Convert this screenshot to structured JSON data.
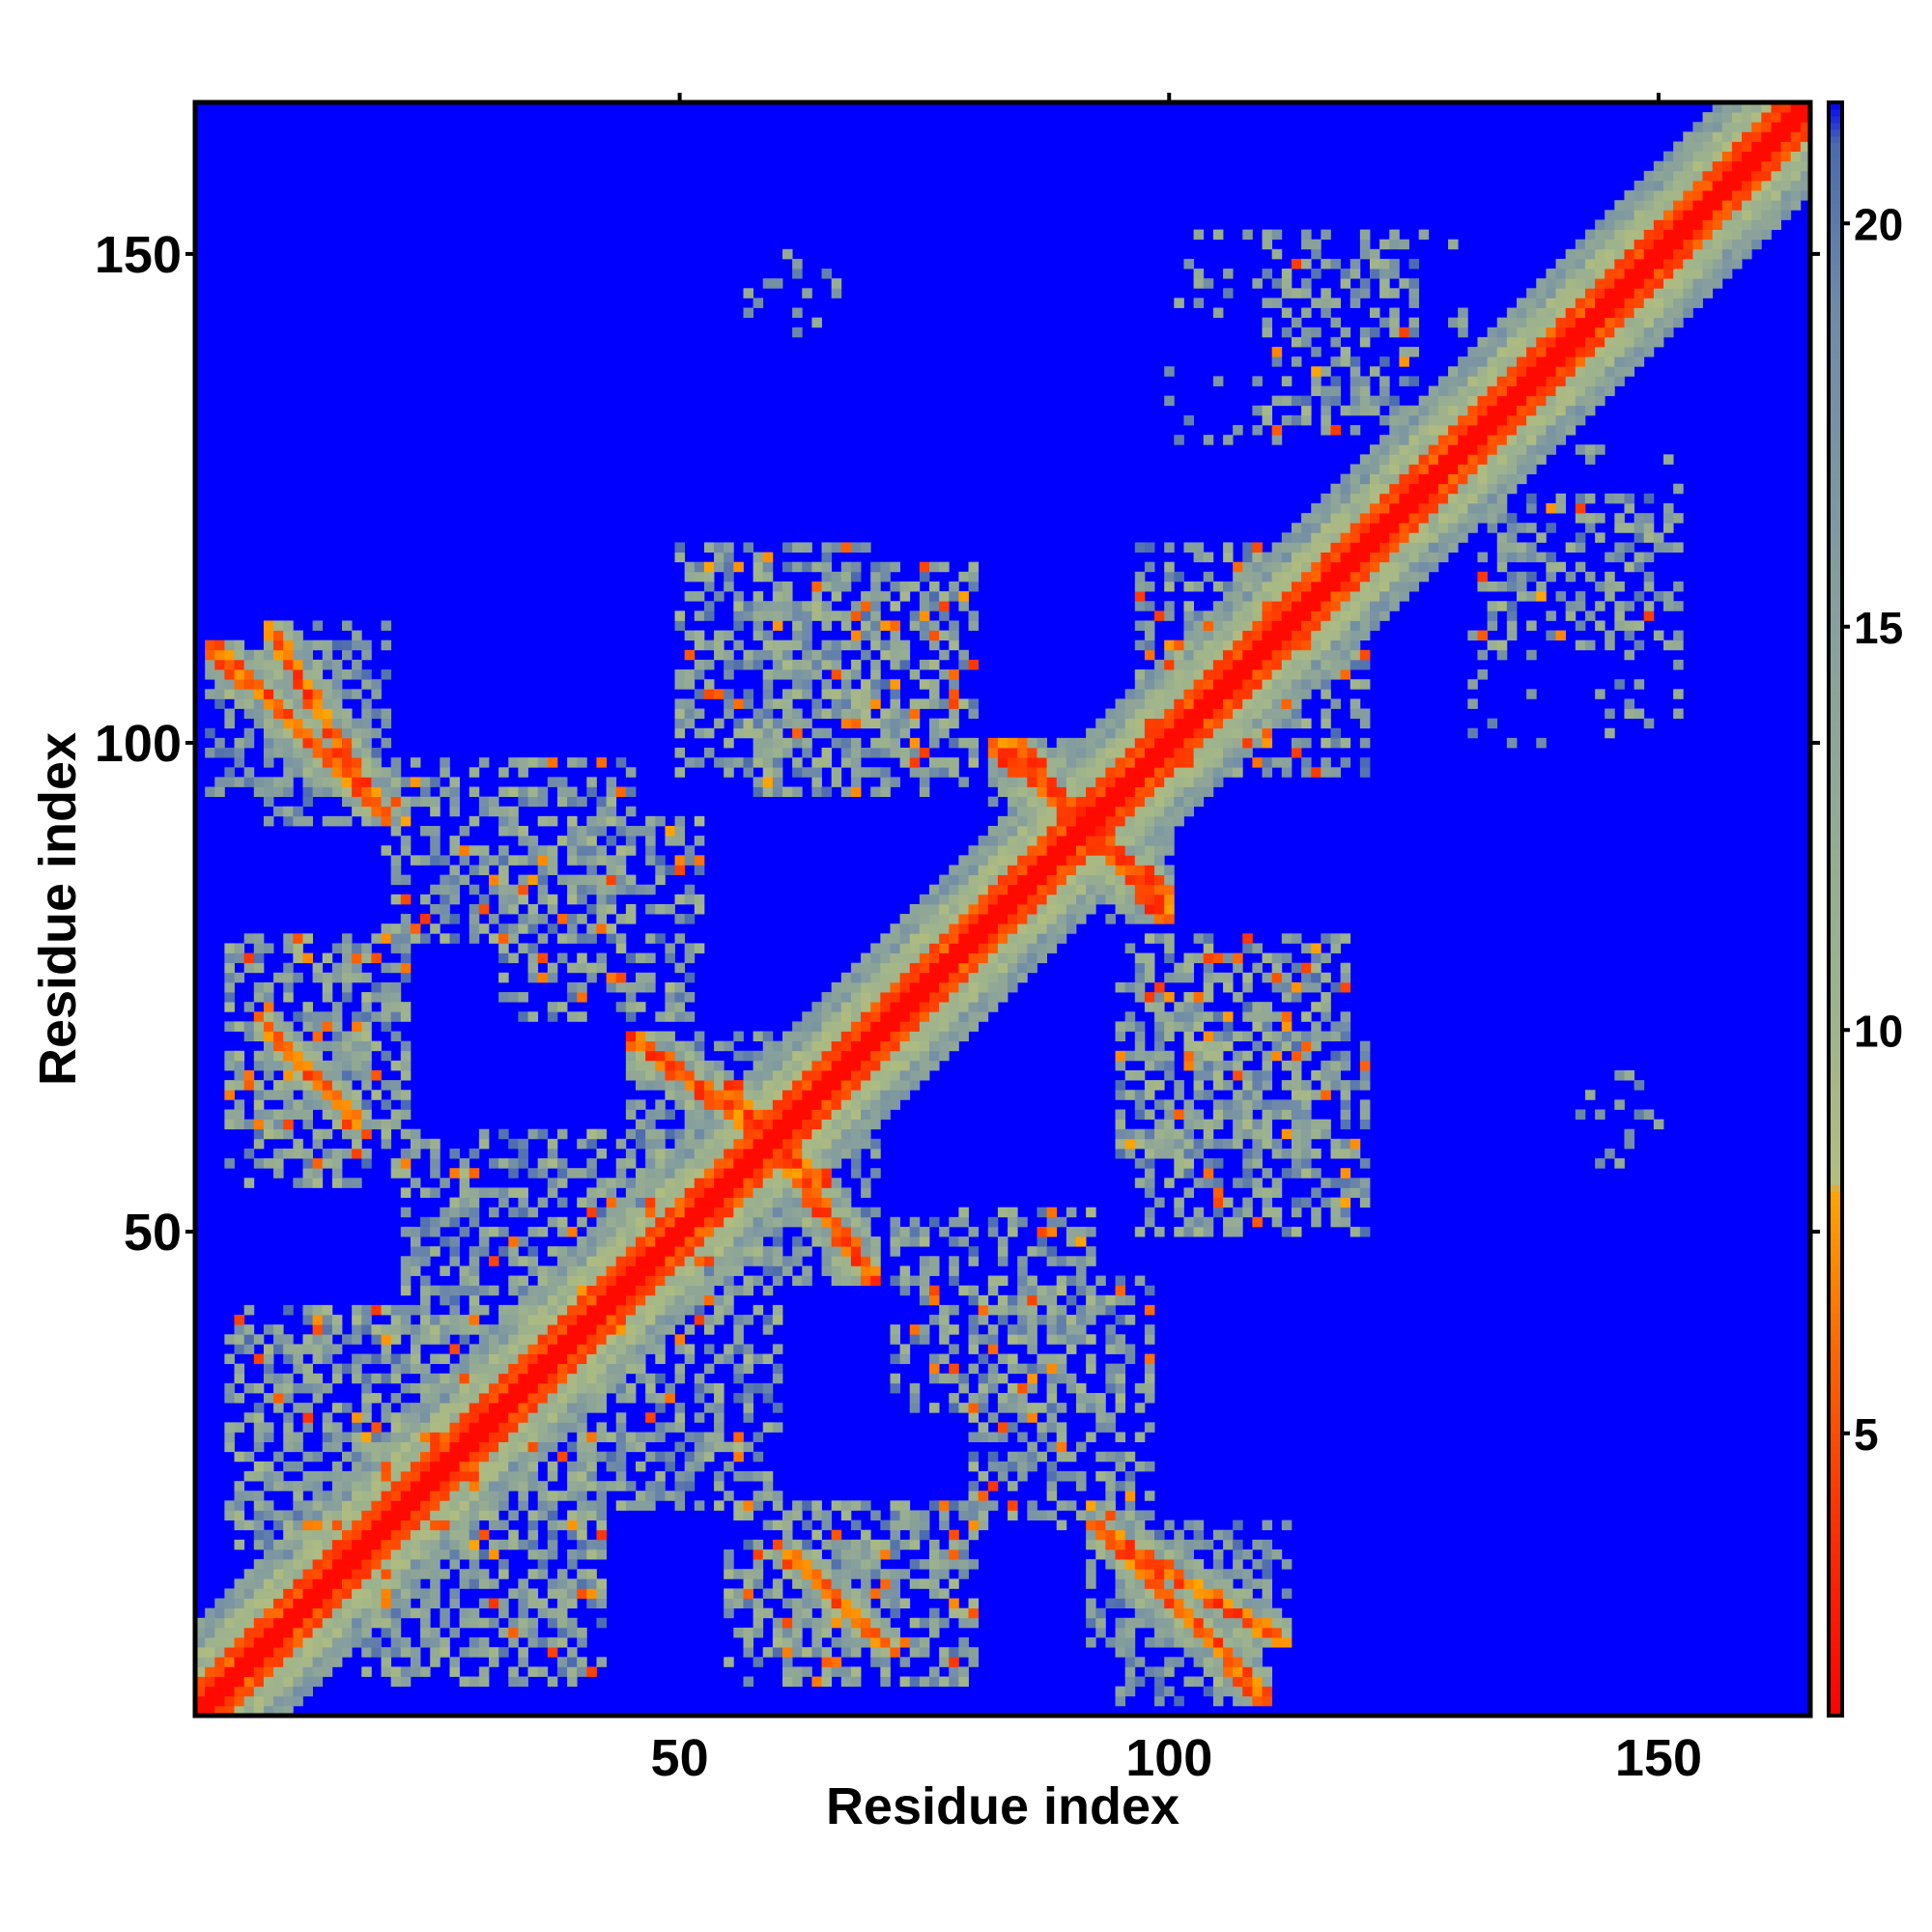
{
  "chart_data": {
    "type": "heatmap",
    "title": "",
    "xlabel": "Residue index",
    "ylabel": "Residue index",
    "n_residues": 165,
    "xlim": [
      1,
      165
    ],
    "ylim": [
      1,
      165
    ],
    "xticks": [
      50,
      100,
      150
    ],
    "yticks": [
      50,
      100,
      150
    ],
    "colorbar": {
      "ticks": [
        5,
        10,
        15,
        20
      ],
      "range": [
        1.5,
        21.5
      ],
      "stops": [
        {
          "value": 1.5,
          "color": "#ff0000"
        },
        {
          "value": 4.0,
          "color": "#ff3300"
        },
        {
          "value": 6.0,
          "color": "#ff6600"
        },
        {
          "value": 8.0,
          "color": "#ffa500"
        },
        {
          "value": 8.1,
          "color": "#b4be7d"
        },
        {
          "value": 10.0,
          "color": "#9fb48c"
        },
        {
          "value": 15.0,
          "color": "#88a09c"
        },
        {
          "value": 19.0,
          "color": "#6e8aa8"
        },
        {
          "value": 21.0,
          "color": "#4b6ab0"
        },
        {
          "value": 21.5,
          "color": "#0000ff"
        }
      ]
    },
    "value_meaning": "pairwise residue distance; values above 21 drawn as background",
    "contact_regions": [
      {
        "i": [
          1,
          165
        ],
        "j": [
          1,
          165
        ],
        "pattern": "diagonal",
        "strength": 1.0
      },
      {
        "i": [
          18,
          42
        ],
        "j": [
          4,
          30
        ],
        "pattern": "helix-bundle",
        "strength": 0.8
      },
      {
        "i": [
          60,
          72
        ],
        "j": [
          7,
          18
        ],
        "pattern": "antiparallel",
        "strength": 0.9
      },
      {
        "i": [
          92,
          112
        ],
        "j": [
          8,
          20
        ],
        "pattern": "antiparallel",
        "strength": 0.9
      },
      {
        "i": [
          40,
          60
        ],
        "j": [
          22,
          48
        ],
        "pattern": "patch",
        "strength": 0.7
      },
      {
        "i": [
          55,
          70
        ],
        "j": [
          45,
          65
        ],
        "pattern": "antiparallel",
        "strength": 0.9
      },
      {
        "i": [
          72,
          92
        ],
        "j": [
          32,
          52
        ],
        "pattern": "patch",
        "strength": 0.6
      },
      {
        "i": [
          84,
          100
        ],
        "j": [
          82,
          100
        ],
        "pattern": "antiparallel",
        "strength": 0.9
      },
      {
        "i": [
          95,
          118
        ],
        "j": [
          58,
          80
        ],
        "pattern": "patch",
        "strength": 0.7
      },
      {
        "i": [
          138,
          150
        ],
        "j": [
          60,
          66
        ],
        "pattern": "sparse",
        "strength": 0.3
      },
      {
        "i": [
          4,
          22
        ],
        "j": [
          55,
          80
        ],
        "pattern": "patch",
        "strength": 0.7
      },
      {
        "i": [
          2,
          18
        ],
        "j": [
          95,
          110
        ],
        "pattern": "antiparallel",
        "strength": 0.9
      },
      {
        "i": [
          20,
          45
        ],
        "j": [
          80,
          98
        ],
        "pattern": "patch",
        "strength": 0.6
      },
      {
        "i": [
          50,
          70
        ],
        "j": [
          97,
          120
        ],
        "pattern": "patch",
        "strength": 0.6
      },
      {
        "i": [
          97,
          110
        ],
        "j": [
          100,
          120
        ],
        "pattern": "patch",
        "strength": 0.6
      },
      {
        "i": [
          132,
          152
        ],
        "j": [
          110,
          125
        ],
        "pattern": "patch",
        "strength": 0.5
      },
      {
        "i": [
          100,
          130
        ],
        "j": [
          130,
          152
        ],
        "pattern": "sparse",
        "strength": 0.4
      },
      {
        "i": [
          56,
          66
        ],
        "j": [
          140,
          148
        ],
        "pattern": "sparse",
        "strength": 0.3
      }
    ]
  }
}
